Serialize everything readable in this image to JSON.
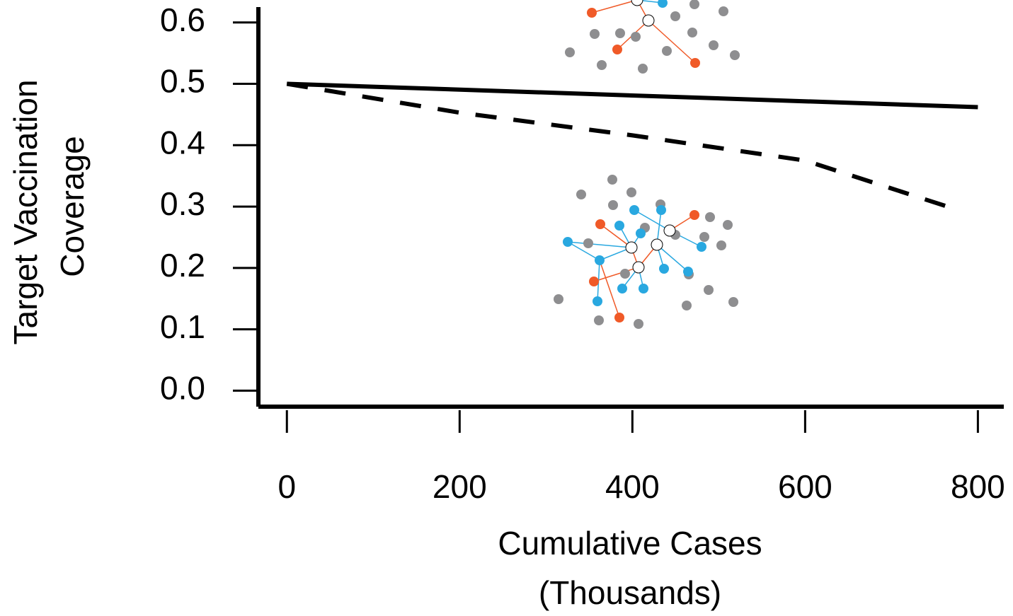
{
  "chart_data": {
    "type": "line",
    "xlabel": [
      "Cumulative Cases",
      "(Thousands)"
    ],
    "ylabel": [
      "Target Vaccination",
      "Coverage"
    ],
    "series": [
      {
        "color": "#000000",
        "dash": false,
        "x": [
          0,
          800
        ],
        "values": [
          0.5,
          0.462
        ]
      },
      {
        "color": "#000000",
        "dash": true,
        "x": [
          0,
          200,
          400,
          600,
          780
        ],
        "values": [
          0.5,
          0.453,
          0.416,
          0.375,
          0.293
        ]
      }
    ],
    "xlim": [
      -33,
      830
    ],
    "xticks": [
      0,
      200,
      400,
      600,
      800
    ],
    "ylim": [
      -0.026,
      0.625
    ],
    "yticks": [
      {
        "value": 0,
        "label": "0.0"
      },
      0.1,
      0.2,
      0.3,
      0.4,
      0.5,
      0.6
    ]
  }
}
